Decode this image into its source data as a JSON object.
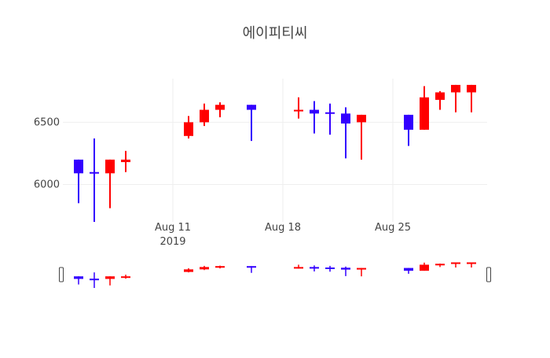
{
  "chart_data": {
    "type": "candlestick",
    "title": "에이피티씨",
    "x_tick_labels": [
      {
        "date": "2019-08-11",
        "line1": "Aug 11",
        "line2": "2019"
      },
      {
        "date": "2019-08-18",
        "line1": "Aug 18",
        "line2": ""
      },
      {
        "date": "2019-08-25",
        "line1": "Aug 25",
        "line2": ""
      }
    ],
    "y_ticks": [
      6000,
      6500
    ],
    "ylim": [
      5700,
      6850
    ],
    "xlim": [
      "2019-08-04",
      "2019-08-31"
    ],
    "has_range_slider": true,
    "grid": true,
    "colors": {
      "increasing": "#ff0000",
      "decreasing": "#3300ff"
    },
    "candles": [
      {
        "date": "2019-08-05",
        "open": 6200,
        "high": 6200,
        "low": 5850,
        "close": 6090
      },
      {
        "date": "2019-08-06",
        "open": 6100,
        "high": 6370,
        "low": 5700,
        "close": 6090
      },
      {
        "date": "2019-08-07",
        "open": 6090,
        "high": 6200,
        "low": 5810,
        "close": 6200
      },
      {
        "date": "2019-08-08",
        "open": 6180,
        "high": 6270,
        "low": 6100,
        "close": 6200
      },
      {
        "date": "2019-08-12",
        "open": 6390,
        "high": 6550,
        "low": 6370,
        "close": 6500
      },
      {
        "date": "2019-08-13",
        "open": 6500,
        "high": 6650,
        "low": 6470,
        "close": 6600
      },
      {
        "date": "2019-08-14",
        "open": 6600,
        "high": 6660,
        "low": 6540,
        "close": 6640
      },
      {
        "date": "2019-08-16",
        "open": 6640,
        "high": 6640,
        "low": 6350,
        "close": 6600
      },
      {
        "date": "2019-08-19",
        "open": 6600,
        "high": 6700,
        "low": 6530,
        "close": 6600
      },
      {
        "date": "2019-08-20",
        "open": 6600,
        "high": 6670,
        "low": 6410,
        "close": 6570
      },
      {
        "date": "2019-08-21",
        "open": 6580,
        "high": 6650,
        "low": 6400,
        "close": 6570
      },
      {
        "date": "2019-08-22",
        "open": 6570,
        "high": 6620,
        "low": 6210,
        "close": 6490
      },
      {
        "date": "2019-08-23",
        "open": 6500,
        "high": 6560,
        "low": 6200,
        "close": 6560
      },
      {
        "date": "2019-08-26",
        "open": 6560,
        "high": 6560,
        "low": 6310,
        "close": 6440
      },
      {
        "date": "2019-08-27",
        "open": 6440,
        "high": 6790,
        "low": 6440,
        "close": 6700
      },
      {
        "date": "2019-08-28",
        "open": 6680,
        "high": 6750,
        "low": 6600,
        "close": 6740
      },
      {
        "date": "2019-08-29",
        "open": 6740,
        "high": 6800,
        "low": 6580,
        "close": 6800
      },
      {
        "date": "2019-08-30",
        "open": 6740,
        "high": 6800,
        "low": 6580,
        "close": 6800
      }
    ]
  }
}
